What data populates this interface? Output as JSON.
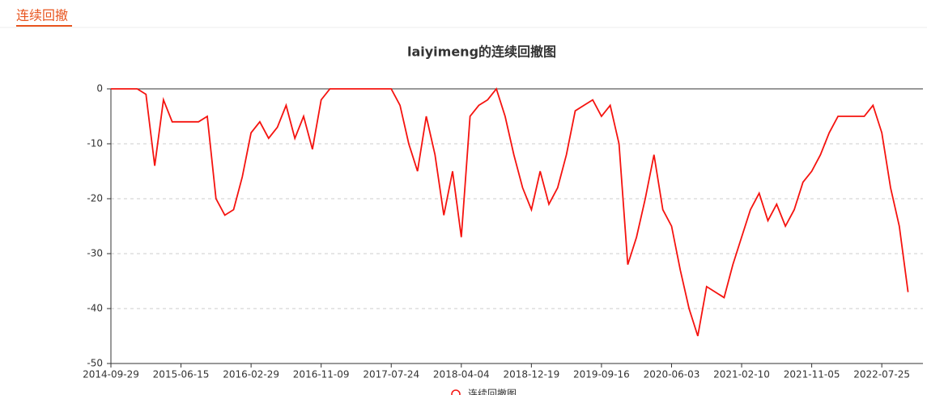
{
  "header": {
    "tab": "连续回撤"
  },
  "chart_data": {
    "type": "line",
    "title": "laiyimeng的连续回撤图",
    "categories": [
      "2014-09-29",
      null,
      null,
      null,
      null,
      null,
      null,
      null,
      "2015-06-15",
      null,
      null,
      null,
      null,
      null,
      null,
      null,
      "2016-02-29",
      null,
      null,
      null,
      null,
      null,
      null,
      null,
      "2016-11-09",
      null,
      null,
      null,
      null,
      null,
      null,
      null,
      "2017-07-24",
      null,
      null,
      null,
      null,
      null,
      null,
      null,
      "2018-04-04",
      null,
      null,
      null,
      null,
      null,
      null,
      null,
      "2018-12-19",
      null,
      null,
      null,
      null,
      null,
      null,
      null,
      "2019-09-16",
      null,
      null,
      null,
      null,
      null,
      null,
      null,
      "2020-06-03",
      null,
      null,
      null,
      null,
      null,
      null,
      null,
      "2021-02-10",
      null,
      null,
      null,
      null,
      null,
      null,
      null,
      "2021-11-05",
      null,
      null,
      null,
      null,
      null,
      null,
      null,
      "2022-07-25",
      null,
      null,
      null
    ],
    "series": [
      {
        "name": "连续回撤图",
        "color": "#f5130f",
        "values": [
          0,
          0,
          0,
          0,
          -1,
          -14,
          -2,
          -6,
          -6,
          -6,
          -6,
          -5,
          -20,
          -23,
          -22,
          -16,
          -8,
          -6,
          -9,
          -7,
          -3,
          -9,
          -5,
          -11,
          -2,
          0,
          0,
          0,
          0,
          0,
          0,
          0,
          0,
          -3,
          -10,
          -15,
          -5,
          -12,
          -23,
          -15,
          -27,
          -5,
          -3,
          -2,
          0,
          -5,
          -12,
          -18,
          -22,
          -15,
          -21,
          -18,
          -12,
          -4,
          -3,
          -2,
          -5,
          -3,
          -10,
          -32,
          -27,
          -20,
          -12,
          -22,
          -25,
          -33,
          -40,
          -45,
          -36,
          -37,
          -38,
          -32,
          -27,
          -22,
          -19,
          -24,
          -21,
          -25,
          -22,
          -17,
          -15,
          -12,
          -8,
          -5,
          -5,
          -5,
          -5,
          -3,
          -8,
          -18,
          -25,
          -37
        ]
      }
    ],
    "ylim": [
      -50,
      0
    ],
    "yticks": [
      0,
      -10,
      -20,
      -30,
      -40,
      -50
    ],
    "grid": true
  }
}
